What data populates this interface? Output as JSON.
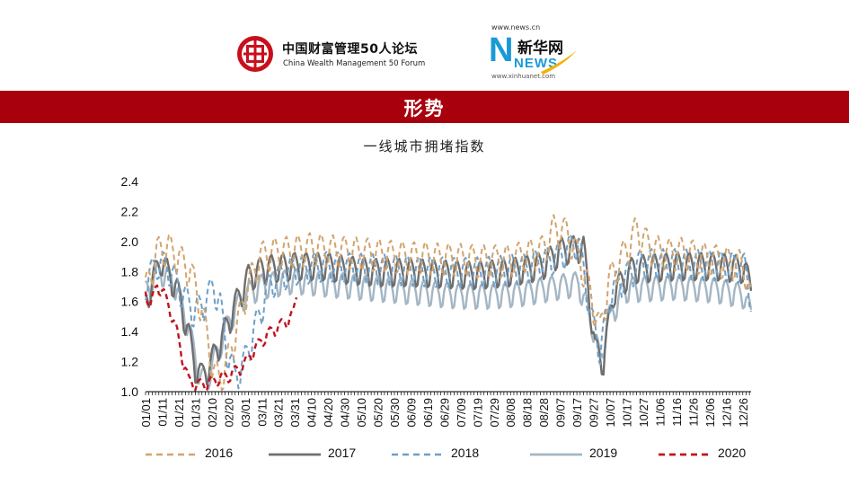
{
  "header": {
    "forum_logo": {
      "icon": "seal-logo-icon",
      "name_cn": "中国财富管理50人论坛",
      "name_en": "China Wealth Management 50 Forum"
    },
    "news_logo": {
      "icon": "xinhua-news-logo-icon",
      "url_top": "www.news.cn",
      "brand_cn": "新华网",
      "brand_en": "NEWS",
      "url_bottom": "www.xinhuanet.com"
    }
  },
  "banner": {
    "title": "形势",
    "color": "#a8000c"
  },
  "chart_data": {
    "type": "line",
    "title": "一线城市拥堵指数",
    "xlabel": "",
    "ylabel": "",
    "ylim": [
      1.0,
      2.4
    ],
    "yticks": [
      "1.0",
      "1.2",
      "1.4",
      "1.6",
      "1.8",
      "2.0",
      "2.2",
      "2.4"
    ],
    "x_tick_labels": [
      "01/01",
      "01/11",
      "01/21",
      "01/31",
      "02/10",
      "02/20",
      "03/01",
      "03/11",
      "03/21",
      "03/31",
      "04/10",
      "04/20",
      "04/30",
      "05/10",
      "05/20",
      "05/30",
      "06/09",
      "06/19",
      "06/29",
      "07/09",
      "07/19",
      "07/29",
      "08/08",
      "08/18",
      "08/28",
      "09/07",
      "09/17",
      "09/27",
      "10/07",
      "10/17",
      "10/27",
      "11/06",
      "11/16",
      "11/26",
      "12/06",
      "12/16",
      "12/26"
    ],
    "legend_position": "bottom",
    "grid": false,
    "series": [
      {
        "name": "2016",
        "color": "#d2a46e",
        "dash": "dash",
        "weight": 2,
        "points": [
          [
            1,
            1.7
          ],
          [
            8,
            1.95
          ],
          [
            15,
            1.98
          ],
          [
            22,
            1.9
          ],
          [
            28,
            1.82
          ],
          [
            33,
            1.65
          ],
          [
            38,
            1.4
          ],
          [
            42,
            1.15
          ],
          [
            46,
            1.1
          ],
          [
            50,
            1.2
          ],
          [
            56,
            1.45
          ],
          [
            62,
            1.7
          ],
          [
            70,
            1.92
          ],
          [
            80,
            1.95
          ],
          [
            90,
            1.96
          ],
          [
            100,
            1.98
          ],
          [
            110,
            1.97
          ],
          [
            120,
            1.96
          ],
          [
            130,
            1.95
          ],
          [
            140,
            1.94
          ],
          [
            150,
            1.93
          ],
          [
            160,
            1.92
          ],
          [
            170,
            1.92
          ],
          [
            180,
            1.91
          ],
          [
            190,
            1.91
          ],
          [
            200,
            1.9
          ],
          [
            210,
            1.9
          ],
          [
            220,
            1.9
          ],
          [
            230,
            1.93
          ],
          [
            240,
            1.96
          ],
          [
            247,
            2.1
          ],
          [
            255,
            2.08
          ],
          [
            263,
            1.9
          ],
          [
            271,
            1.6
          ],
          [
            275,
            1.42
          ],
          [
            280,
            1.75
          ],
          [
            290,
            1.95
          ],
          [
            297,
            2.1
          ],
          [
            305,
            1.98
          ],
          [
            315,
            1.94
          ],
          [
            325,
            1.95
          ],
          [
            335,
            1.92
          ],
          [
            345,
            1.9
          ],
          [
            355,
            1.88
          ],
          [
            362,
            1.86
          ],
          [
            366,
            1.6
          ]
        ],
        "amp": 0.13,
        "period": 7,
        "phase": 0
      },
      {
        "name": "2017",
        "color": "#6e6e6e",
        "dash": "solid",
        "weight": 2.4,
        "points": [
          [
            1,
            1.62
          ],
          [
            10,
            1.9
          ],
          [
            20,
            1.7
          ],
          [
            27,
            1.4
          ],
          [
            31,
            1.18
          ],
          [
            35,
            1.12
          ],
          [
            40,
            1.2
          ],
          [
            48,
            1.4
          ],
          [
            56,
            1.62
          ],
          [
            63,
            1.78
          ],
          [
            72,
            1.84
          ],
          [
            90,
            1.86
          ],
          [
            110,
            1.86
          ],
          [
            120,
            1.84
          ],
          [
            140,
            1.82
          ],
          [
            160,
            1.82
          ],
          [
            180,
            1.81
          ],
          [
            200,
            1.8
          ],
          [
            220,
            1.82
          ],
          [
            240,
            1.86
          ],
          [
            252,
            1.96
          ],
          [
            265,
            1.98
          ],
          [
            272,
            1.3
          ],
          [
            277,
            1.22
          ],
          [
            283,
            1.68
          ],
          [
            295,
            1.84
          ],
          [
            320,
            1.86
          ],
          [
            345,
            1.86
          ],
          [
            362,
            1.84
          ],
          [
            366,
            1.7
          ]
        ],
        "amp": 0.11,
        "period": 7,
        "phase": 2
      },
      {
        "name": "2018",
        "color": "#6f9fc6",
        "dash": "dash",
        "weight": 2,
        "points": [
          [
            1,
            1.74
          ],
          [
            8,
            1.88
          ],
          [
            15,
            1.84
          ],
          [
            22,
            1.7
          ],
          [
            30,
            1.55
          ],
          [
            36,
            1.6
          ],
          [
            42,
            1.72
          ],
          [
            46,
            1.6
          ],
          [
            50,
            1.3
          ],
          [
            55,
            1.12
          ],
          [
            60,
            1.2
          ],
          [
            68,
            1.48
          ],
          [
            76,
            1.74
          ],
          [
            90,
            1.84
          ],
          [
            110,
            1.86
          ],
          [
            130,
            1.85
          ],
          [
            150,
            1.84
          ],
          [
            170,
            1.83
          ],
          [
            190,
            1.82
          ],
          [
            210,
            1.83
          ],
          [
            230,
            1.85
          ],
          [
            250,
            1.92
          ],
          [
            262,
            2.02
          ],
          [
            270,
            1.5
          ],
          [
            275,
            1.3
          ],
          [
            282,
            1.7
          ],
          [
            300,
            1.88
          ],
          [
            320,
            1.88
          ],
          [
            345,
            1.87
          ],
          [
            362,
            1.85
          ],
          [
            366,
            1.65
          ]
        ],
        "amp": 0.12,
        "period": 7,
        "phase": 4
      },
      {
        "name": "2019",
        "color": "#a4b6c4",
        "dash": "solid",
        "weight": 2.4,
        "points": [
          [
            1,
            1.68
          ],
          [
            10,
            1.82
          ],
          [
            18,
            1.74
          ],
          [
            24,
            1.56
          ],
          [
            30,
            1.3
          ],
          [
            34,
            1.1
          ],
          [
            38,
            1.1
          ],
          [
            45,
            1.3
          ],
          [
            52,
            1.5
          ],
          [
            60,
            1.65
          ],
          [
            70,
            1.72
          ],
          [
            90,
            1.76
          ],
          [
            110,
            1.74
          ],
          [
            130,
            1.72
          ],
          [
            150,
            1.7
          ],
          [
            170,
            1.68
          ],
          [
            190,
            1.66
          ],
          [
            210,
            1.66
          ],
          [
            230,
            1.68
          ],
          [
            250,
            1.72
          ],
          [
            262,
            1.74
          ],
          [
            270,
            1.48
          ],
          [
            275,
            1.22
          ],
          [
            280,
            1.5
          ],
          [
            290,
            1.7
          ],
          [
            320,
            1.72
          ],
          [
            345,
            1.7
          ],
          [
            362,
            1.66
          ],
          [
            366,
            1.52
          ]
        ],
        "amp": 0.1,
        "period": 7,
        "phase": 1
      },
      {
        "name": "2020",
        "color": "#c2141e",
        "dash": "dash",
        "weight": 2.4,
        "points": [
          [
            1,
            1.68
          ],
          [
            4,
            1.58
          ],
          [
            8,
            1.72
          ],
          [
            12,
            1.66
          ],
          [
            16,
            1.55
          ],
          [
            20,
            1.4
          ],
          [
            24,
            1.2
          ],
          [
            27,
            1.08
          ],
          [
            32,
            1.05
          ],
          [
            38,
            1.06
          ],
          [
            44,
            1.09
          ],
          [
            52,
            1.12
          ],
          [
            60,
            1.18
          ],
          [
            66,
            1.28
          ],
          [
            72,
            1.36
          ],
          [
            78,
            1.42
          ],
          [
            84,
            1.46
          ],
          [
            90,
            1.52
          ],
          [
            92,
            1.64
          ]
        ],
        "amp": 0.05,
        "period": 7,
        "phase": 3
      }
    ]
  }
}
